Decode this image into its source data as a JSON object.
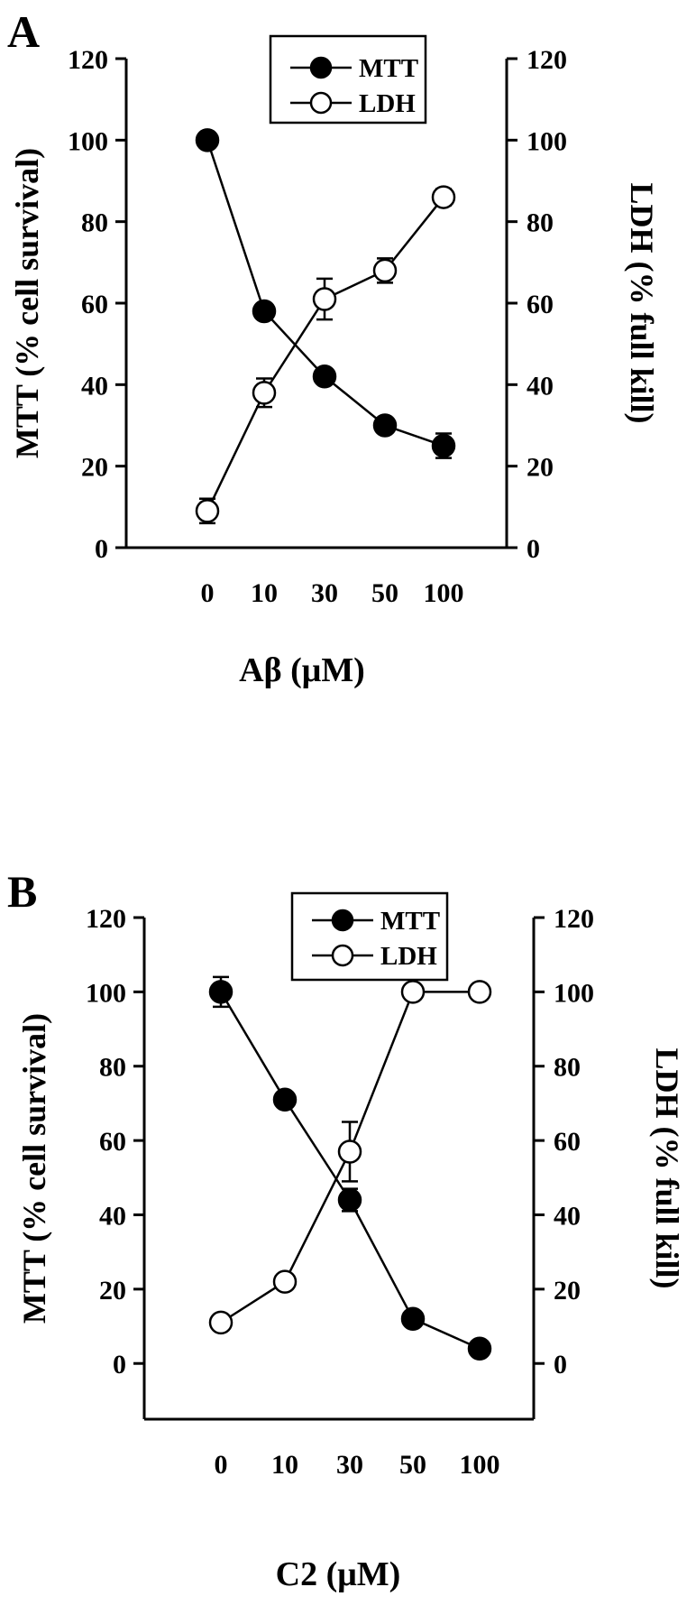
{
  "chart_data": [
    {
      "type": "line",
      "panel_label": "A",
      "categories": [
        "0",
        "10",
        "30",
        "50",
        "100"
      ],
      "xlabel": "Aβ (μM)",
      "ylabel_left": "MTT (% cell survival)",
      "ylabel_right": "LDH (% full kill)",
      "ylim": [
        0,
        120
      ],
      "yticks": [
        0,
        20,
        40,
        60,
        80,
        100,
        120
      ],
      "legend_position": "top-center",
      "grid": false,
      "series": [
        {
          "name": "MTT",
          "marker": "filled-circle",
          "axis": "left",
          "values": [
            100,
            58,
            42,
            30,
            25
          ],
          "errors": [
            0,
            0,
            0,
            0,
            3
          ]
        },
        {
          "name": "LDH",
          "marker": "open-circle",
          "axis": "right",
          "values": [
            9,
            38,
            61,
            68,
            86
          ],
          "errors": [
            3,
            3.5,
            5,
            3,
            2
          ]
        }
      ]
    },
    {
      "type": "line",
      "panel_label": "B",
      "categories": [
        "0",
        "10",
        "30",
        "50",
        "100"
      ],
      "xlabel": "C2 (μM)",
      "ylabel_left": "MTT (% cell survival)",
      "ylabel_right": "LDH (% full kill)",
      "ylim": [
        -15,
        120
      ],
      "yticks": [
        0,
        20,
        40,
        60,
        80,
        100,
        120
      ],
      "legend_position": "top-center",
      "grid": false,
      "series": [
        {
          "name": "MTT",
          "marker": "filled-circle",
          "axis": "left",
          "values": [
            100,
            71,
            44,
            12,
            4
          ],
          "errors": [
            4,
            0,
            3,
            0,
            0
          ]
        },
        {
          "name": "LDH",
          "marker": "open-circle",
          "axis": "right",
          "values": [
            11,
            22,
            57,
            100,
            100
          ],
          "errors": [
            0,
            0,
            8,
            0,
            0
          ]
        }
      ]
    }
  ]
}
